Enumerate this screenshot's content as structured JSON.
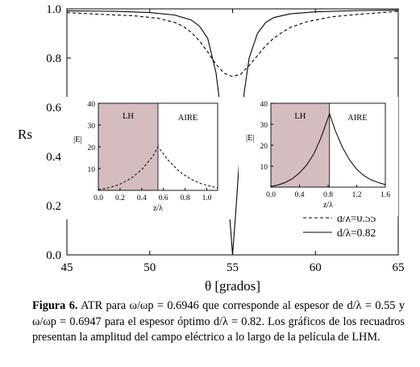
{
  "chart_data": [
    {
      "type": "line",
      "title": "",
      "xlabel": "θ [grados]",
      "ylabel": "Rs",
      "xlim": [
        45,
        65
      ],
      "ylim": [
        0.0,
        1.0
      ],
      "xticks": [
        "45",
        "50",
        "55",
        "60",
        "65"
      ],
      "yticks": [
        "0.0",
        "0.2",
        "0.4",
        "0.6",
        "0.8",
        "1.0"
      ],
      "grid": false,
      "legend_position": "bottom-right",
      "series": [
        {
          "name": "d/λ=0.55",
          "style": "dashed",
          "x": [
            45.0,
            47.0,
            49.0,
            50.5,
            51.5,
            52.0,
            52.5,
            53.0,
            53.5,
            54.0,
            54.5,
            55.0,
            55.5,
            56.0,
            56.5,
            57.0,
            57.5,
            58.0,
            58.5,
            59.5,
            61.0,
            63.0,
            65.0
          ],
          "y": [
            0.985,
            0.978,
            0.972,
            0.962,
            0.945,
            0.93,
            0.905,
            0.87,
            0.825,
            0.775,
            0.738,
            0.725,
            0.735,
            0.77,
            0.81,
            0.85,
            0.882,
            0.905,
            0.925,
            0.948,
            0.968,
            0.98,
            0.99
          ]
        },
        {
          "name": "d/λ=0.82",
          "style": "solid",
          "x": [
            45.0,
            48.0,
            50.0,
            51.5,
            52.5,
            53.0,
            53.5,
            54.0,
            54.3,
            54.6,
            54.8,
            55.0,
            55.2,
            55.4,
            55.7,
            56.0,
            56.5,
            57.0,
            57.5,
            58.5,
            60.0,
            62.5,
            65.0
          ],
          "y": [
            0.992,
            0.99,
            0.985,
            0.975,
            0.955,
            0.93,
            0.88,
            0.74,
            0.58,
            0.35,
            0.18,
            0.0,
            0.18,
            0.38,
            0.66,
            0.8,
            0.9,
            0.945,
            0.965,
            0.98,
            0.988,
            0.993,
            0.995
          ]
        }
      ]
    },
    {
      "type": "area",
      "ylabel": "|E|",
      "xlabel": "z/λ",
      "xlim": [
        0,
        1.1
      ],
      "ylim": [
        0,
        40
      ],
      "xticks": [
        "0.0",
        "0.2",
        "0.4",
        "0.6",
        "0.8",
        "1.0"
      ],
      "yticks": [
        "10",
        "20",
        "30",
        "40"
      ],
      "region_labels": [
        "LH",
        "AIRE"
      ],
      "lh_end": 0.55,
      "region_fill": "#d4bcbf",
      "series": [
        {
          "style": "dashed",
          "x": [
            0,
            0.1,
            0.2,
            0.3,
            0.4,
            0.5,
            0.55,
            0.65,
            0.75,
            0.85,
            0.95,
            1.05,
            1.1
          ],
          "y": [
            0.3,
            1.2,
            2.8,
            5.5,
            9.5,
            15.5,
            20.0,
            13.5,
            8.5,
            5.2,
            3.0,
            1.7,
            1.2
          ]
        }
      ]
    },
    {
      "type": "area",
      "ylabel": "|E|",
      "xlabel": "z/λ",
      "xlim": [
        0,
        1.6
      ],
      "ylim": [
        0,
        40
      ],
      "xticks": [
        "0.0",
        "0.4",
        "0.8",
        "1.2",
        "1.6"
      ],
      "yticks": [
        "10",
        "20",
        "30",
        "40"
      ],
      "region_labels": [
        "LH",
        "AIRE"
      ],
      "lh_end": 0.82,
      "region_fill": "#d4bcbf",
      "series": [
        {
          "style": "solid",
          "x": [
            0,
            0.1,
            0.2,
            0.3,
            0.4,
            0.5,
            0.6,
            0.7,
            0.82,
            0.9,
            1.0,
            1.1,
            1.2,
            1.3,
            1.4,
            1.5,
            1.6
          ],
          "y": [
            0.3,
            1.0,
            2.2,
            4.0,
            6.8,
            10.5,
            15.8,
            23.5,
            35.0,
            27.0,
            19.0,
            13.0,
            8.5,
            5.5,
            3.5,
            2.2,
            1.2
          ]
        }
      ]
    }
  ],
  "caption": {
    "label": "Figura 6.",
    "text": "ATR para ω/ωp = 0.6946 que corresponde al espesor de d/λ = 0.55 y ω/ωp = 0.6947 para el espesor óptimo d/λ = 0.82. Los gráficos de los recuadros presentan la amplitud del campo eléctrico a lo largo de la película de LHM."
  }
}
